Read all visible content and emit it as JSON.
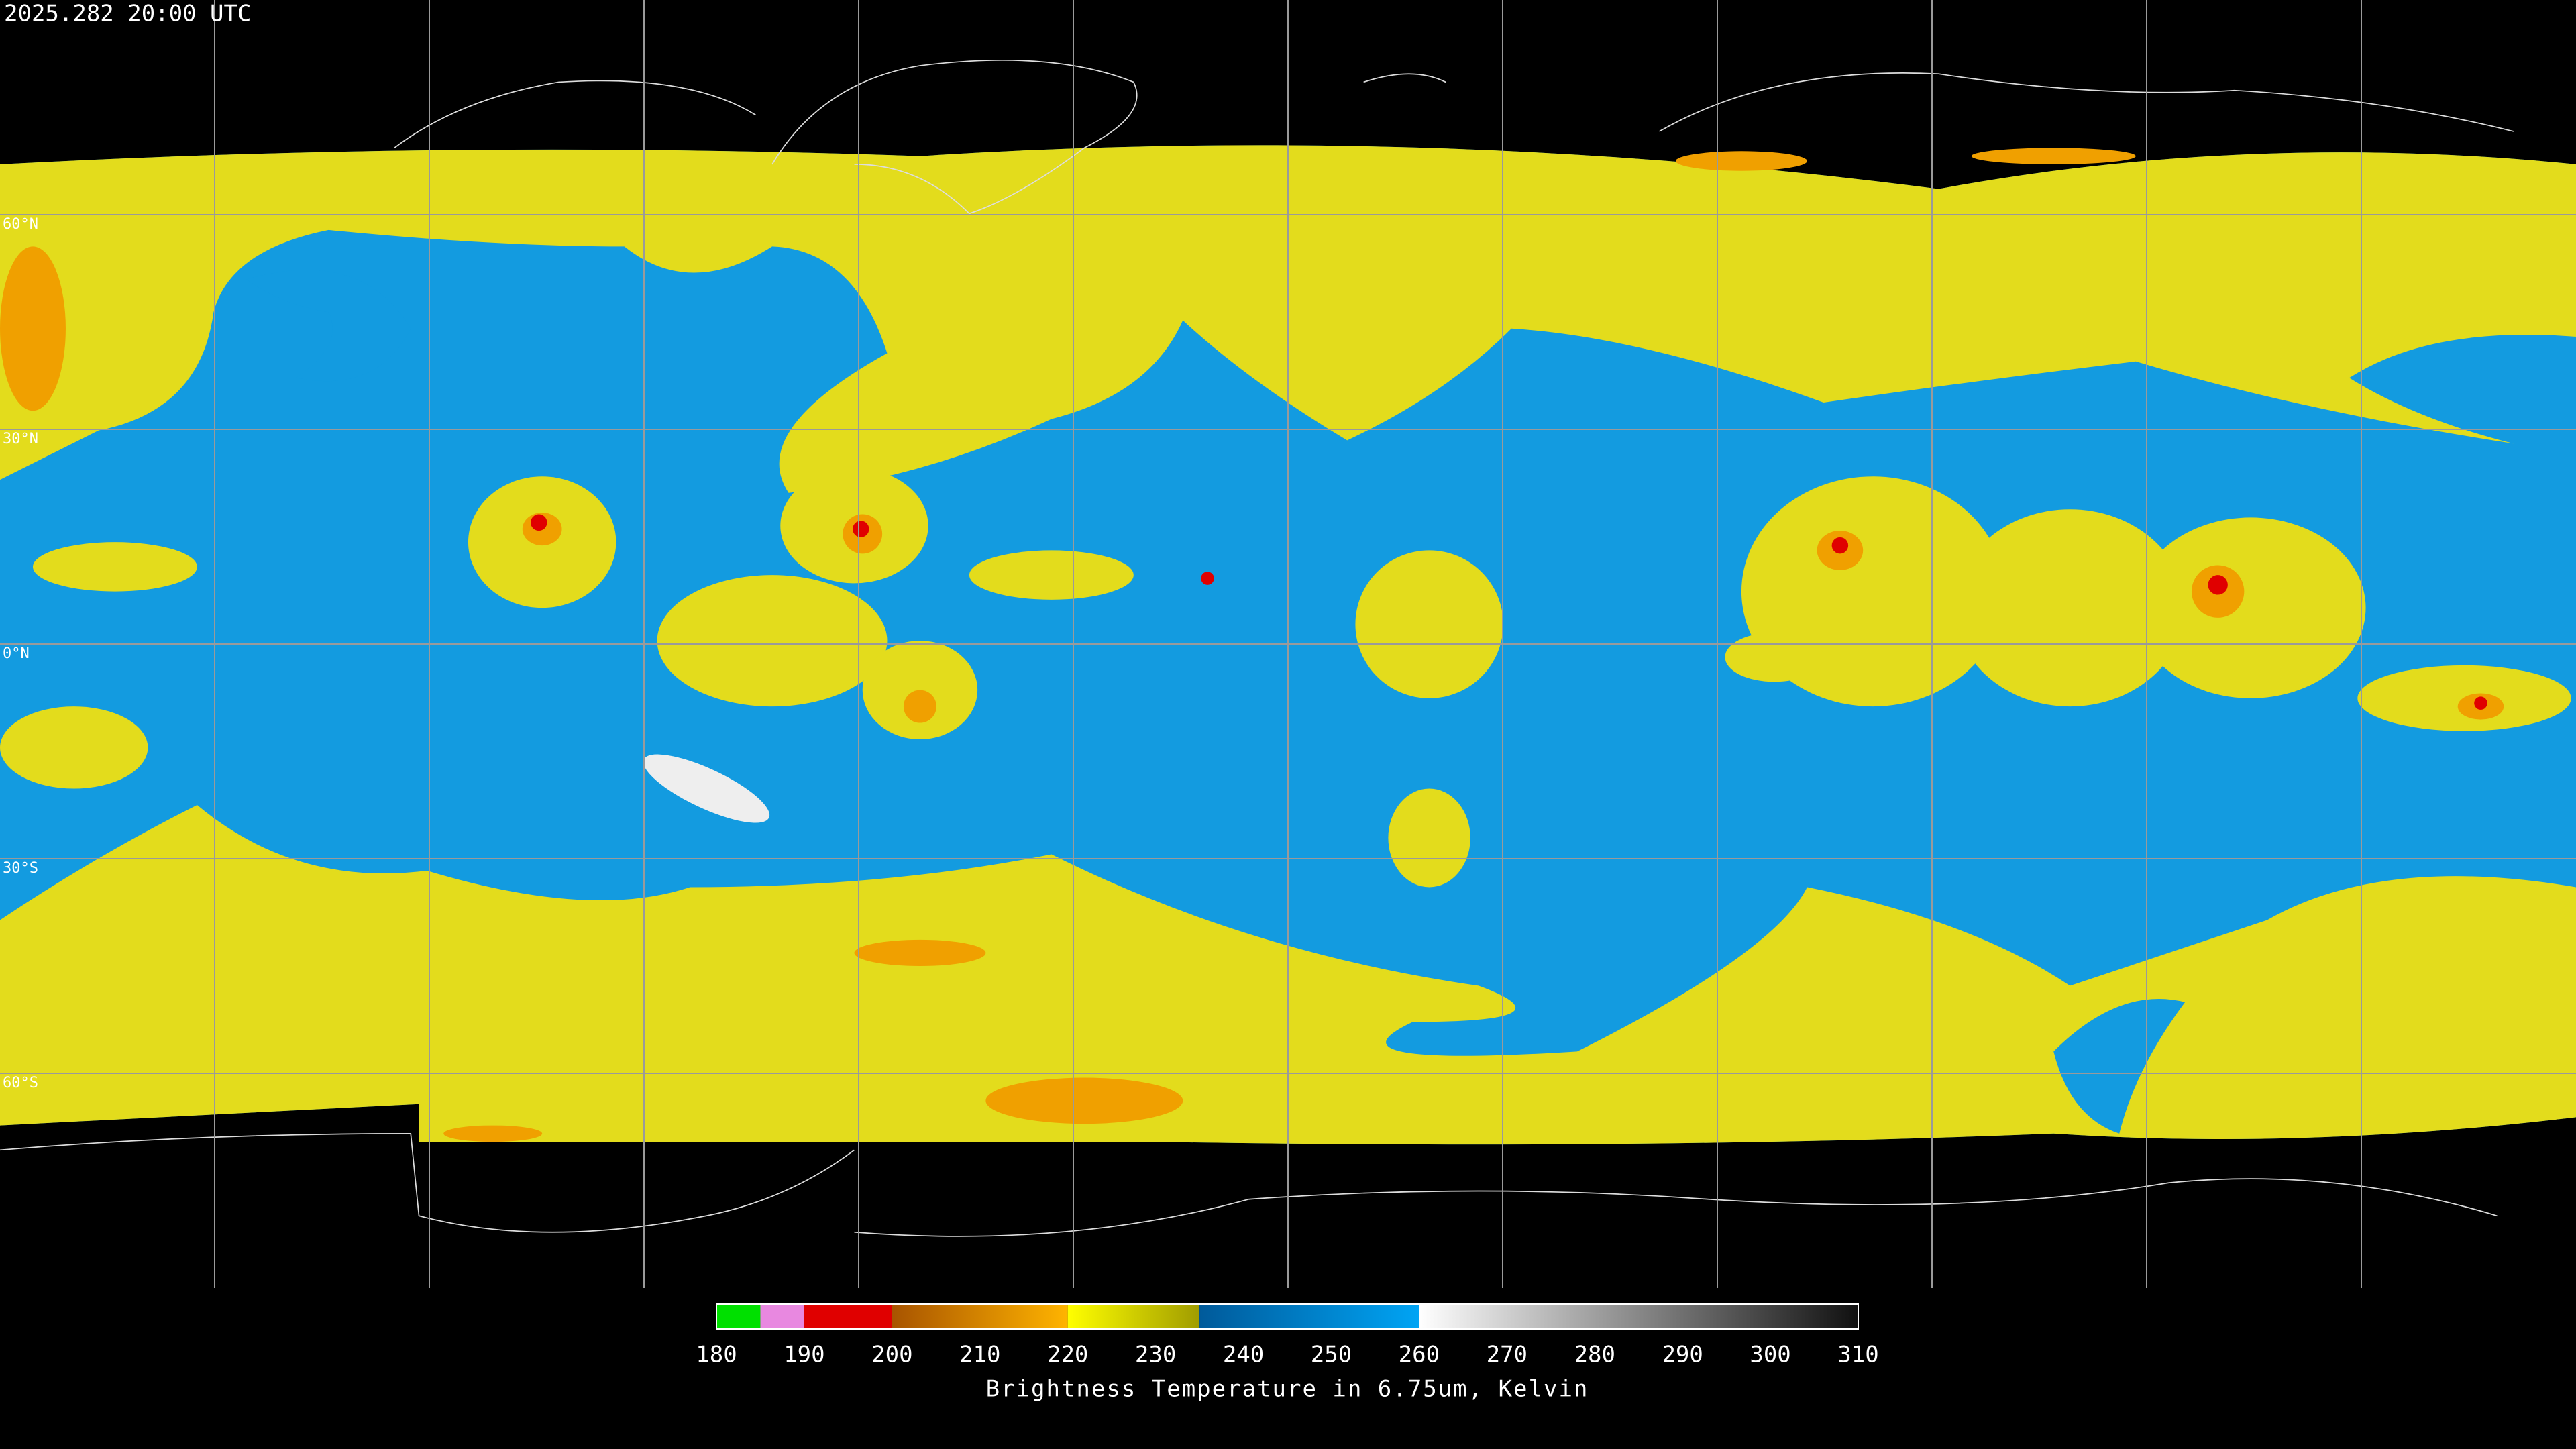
{
  "header": {
    "timestamp": "2025.282 20:00 UTC"
  },
  "map": {
    "lonlim": [
      -180,
      180
    ],
    "latlim": [
      -90,
      90
    ],
    "lat_grid": [
      {
        "value": 60,
        "label": "60°N"
      },
      {
        "value": 30,
        "label": "30°N"
      },
      {
        "value": 0,
        "label": "0°N"
      },
      {
        "value": -30,
        "label": "30°S"
      },
      {
        "value": -60,
        "label": "60°S"
      }
    ],
    "lon_grid": [
      -150,
      -120,
      -90,
      -60,
      -30,
      0,
      30,
      60,
      90,
      120,
      150
    ]
  },
  "colorbar": {
    "title": "Brightness Temperature in 6.75um, Kelvin",
    "lim": [
      180,
      310
    ],
    "ticks": [
      180,
      190,
      200,
      210,
      220,
      230,
      240,
      250,
      260,
      270,
      280,
      290,
      300,
      310
    ],
    "segments": [
      {
        "start": 180,
        "end": 185,
        "colors": [
          "#00e000",
          "#00e000"
        ]
      },
      {
        "start": 185,
        "end": 190,
        "colors": [
          "#e888e0",
          "#e888e0"
        ]
      },
      {
        "start": 190,
        "end": 200,
        "colors": [
          "#e00000",
          "#e00000"
        ]
      },
      {
        "start": 200,
        "end": 220,
        "colors": [
          "#a85400",
          "#ffb400"
        ]
      },
      {
        "start": 220,
        "end": 235,
        "colors": [
          "#ffff00",
          "#a09c00"
        ]
      },
      {
        "start": 235,
        "end": 260,
        "colors": [
          "#005a9a",
          "#00a4f4"
        ]
      },
      {
        "start": 260,
        "end": 310,
        "colors": [
          "#ffffff",
          "#101010"
        ]
      }
    ]
  }
}
